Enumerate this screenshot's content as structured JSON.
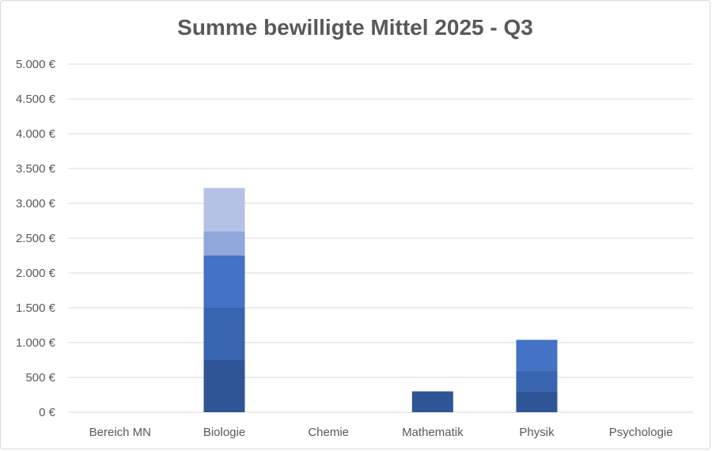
{
  "chart_data": {
    "type": "bar",
    "stacked": true,
    "title": "Summe bewilligte Mittel 2025 - Q3",
    "xlabel": "",
    "ylabel": "",
    "ylim": [
      0,
      5000
    ],
    "y_ticks": [
      0,
      500,
      1000,
      1500,
      2000,
      2500,
      3000,
      3500,
      4000,
      4500,
      5000
    ],
    "y_tick_labels": [
      "0 €",
      "500 €",
      "1.000 €",
      "1.500 €",
      "2.000 €",
      "2.500 €",
      "3.000 €",
      "3.500 €",
      "4.000 €",
      "4.500 €",
      "5.000 €"
    ],
    "grid": true,
    "legend": "none",
    "categories": [
      "Bereich MN",
      "Biologie",
      "Chemie",
      "Mathematik",
      "Physik",
      "Psychologie"
    ],
    "series": [
      {
        "color": "#2f5597",
        "values": [
          0,
          750,
          0,
          300,
          300,
          0
        ]
      },
      {
        "color": "#3864b0",
        "values": [
          0,
          750,
          0,
          0,
          300,
          0
        ]
      },
      {
        "color": "#4472c4",
        "values": [
          0,
          750,
          0,
          0,
          440,
          0
        ]
      },
      {
        "color": "#8fa7da",
        "values": [
          0,
          350,
          0,
          0,
          0,
          0
        ]
      },
      {
        "color": "#b4c2e6",
        "values": [
          0,
          620,
          0,
          0,
          0,
          0
        ]
      }
    ]
  }
}
